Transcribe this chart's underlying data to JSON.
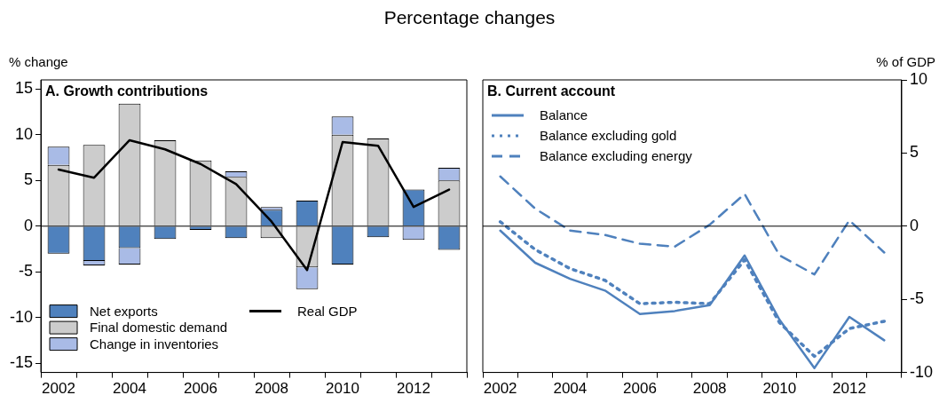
{
  "chart_data": [
    {
      "type": "bar",
      "title": "Percentage changes",
      "subtitle": "A. Growth contributions",
      "ylabel": "% change",
      "stacked": true,
      "grid": false,
      "legend": "bottom left",
      "marker": "none",
      "categories": [
        "2002",
        null,
        "2004",
        null,
        "2006",
        null,
        "2008",
        null,
        "2010",
        null,
        "2012",
        null
      ],
      "ylim": [
        -16,
        16
      ],
      "yticks": [
        -15,
        -10,
        -5,
        0,
        5,
        10,
        15
      ],
      "ref_lines": [
        {
          "axis": "y",
          "value": 0,
          "color": "#000000"
        }
      ],
      "series": [
        {
          "name": "Net exports",
          "color": "#4f81bd",
          "values": [
            -3.0,
            -3.8,
            -2.4,
            -1.4,
            -0.4,
            -1.3,
            1.8,
            2.8,
            -4.2,
            -1.2,
            4.0,
            -2.6
          ]
        },
        {
          "name": "Final domestic demand",
          "color": "#cccccc",
          "values": [
            6.7,
            8.9,
            13.4,
            9.4,
            7.2,
            5.4,
            -1.3,
            -4.5,
            10.0,
            9.6,
            null,
            5.0
          ]
        },
        {
          "name": "Change in inventories",
          "color": "#a9bbe6",
          "values": [
            2.0,
            -0.5,
            -1.8,
            null,
            null,
            0.6,
            0.3,
            -2.4,
            2.0,
            null,
            -1.5,
            1.4
          ]
        },
        {
          "name": "Real GDP",
          "type": "line",
          "color": "#000000",
          "line_style": "solid",
          "values": [
            6.2,
            5.3,
            9.4,
            8.4,
            6.8,
            4.6,
            0.5,
            -4.8,
            9.2,
            8.8,
            2.1,
            4.0
          ]
        }
      ]
    },
    {
      "type": "line",
      "subtitle": "B. Current account",
      "ylabel": "% of GDP",
      "grid": false,
      "legend": "top left",
      "marker": "none",
      "categories": [
        "2002",
        null,
        "2004",
        null,
        "2006",
        null,
        "2008",
        null,
        "2010",
        null,
        "2012",
        null
      ],
      "ylim": [
        -10,
        10
      ],
      "yticks": [
        -10,
        -5,
        0,
        5,
        10
      ],
      "ref_lines": [
        {
          "axis": "y",
          "value": 0,
          "color": "#000000"
        }
      ],
      "series": [
        {
          "name": "Balance",
          "color": "#4f81bd",
          "line_style": "solid",
          "values": [
            -0.3,
            -2.5,
            -3.6,
            -4.4,
            -6.0,
            -5.8,
            -5.4,
            -2.0,
            -6.4,
            -9.7,
            -6.2,
            -7.8
          ]
        },
        {
          "name": "Balance excluding gold",
          "color": "#4f81bd",
          "line_style": "dotted",
          "values": [
            0.3,
            -1.6,
            -2.9,
            -3.7,
            -5.3,
            -5.2,
            -5.3,
            -2.3,
            -6.6,
            -8.9,
            -7.0,
            -6.5
          ]
        },
        {
          "name": "Balance excluding energy",
          "color": "#4f81bd",
          "line_style": "dashed",
          "values": [
            3.4,
            1.2,
            -0.3,
            -0.6,
            -1.2,
            -1.4,
            0.1,
            2.2,
            -2.0,
            -3.3,
            0.4,
            -1.8
          ]
        }
      ]
    }
  ]
}
